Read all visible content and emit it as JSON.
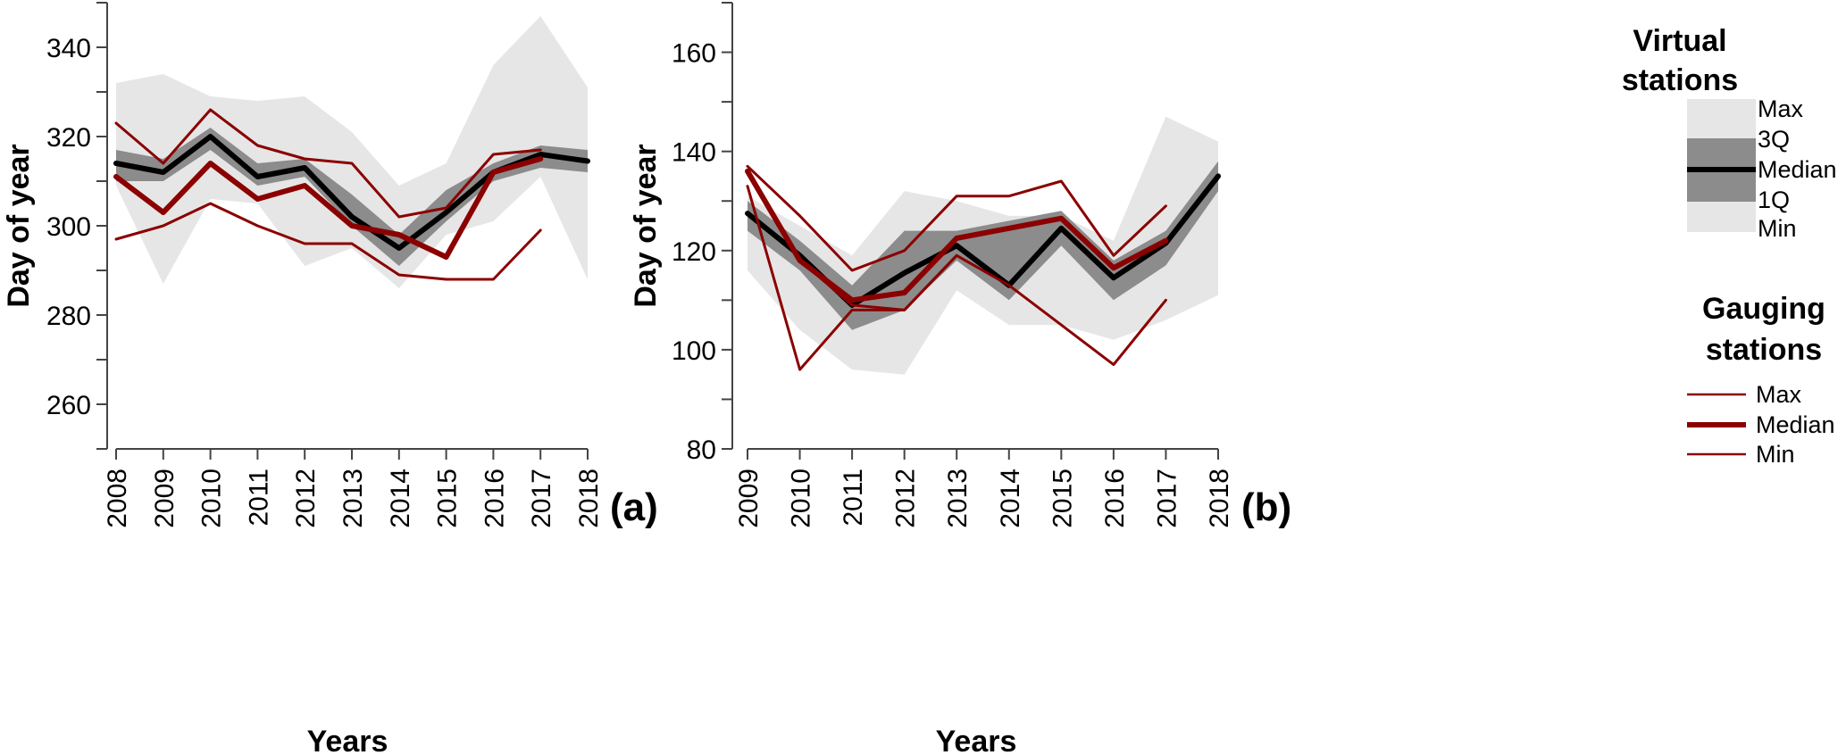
{
  "colors": {
    "minmax_band": "#e6e6e6",
    "quartile_band": "#8c8c8c",
    "virtual_median": "#000000",
    "gauging": "#8b0000",
    "axis": "#444444"
  },
  "chart_data": [
    {
      "type": "line",
      "panel_label": "(a)",
      "xlabel": "Years",
      "ylabel": "Day of year",
      "x": [
        2008,
        2009,
        2010,
        2011,
        2012,
        2013,
        2014,
        2015,
        2016,
        2017,
        2018
      ],
      "xticks": [
        "2008",
        "2009",
        "2010",
        "2011",
        "2012",
        "2013",
        "2014",
        "2015",
        "2016",
        "2017",
        "2018"
      ],
      "ylim": [
        250,
        350
      ],
      "yticks": [
        260,
        280,
        300,
        320,
        340
      ],
      "virtual_stations": {
        "max": [
          332,
          334,
          329,
          328,
          329,
          321,
          309,
          314,
          336,
          347,
          331
        ],
        "q3": [
          317,
          315,
          322,
          314,
          315,
          307,
          298,
          308,
          314,
          318,
          317
        ],
        "median": [
          314,
          312,
          320,
          311,
          313,
          302,
          295,
          303,
          312,
          316,
          314.5
        ],
        "q1": [
          310,
          310,
          317,
          309,
          311,
          300,
          291,
          301,
          310,
          313,
          312
        ],
        "min": [
          309,
          287,
          306,
          305,
          291,
          295,
          286,
          298,
          301,
          311,
          288
        ]
      },
      "gauging_stations": {
        "x": [
          2008,
          2009,
          2010,
          2011,
          2012,
          2013,
          2014,
          2015,
          2016,
          2017
        ],
        "max": [
          323,
          314,
          326,
          318,
          315,
          314,
          302,
          304,
          316,
          317
        ],
        "median": [
          311,
          303,
          314,
          306,
          309,
          300,
          298,
          293,
          312,
          315
        ],
        "min": [
          297,
          300,
          305,
          300,
          296,
          296,
          289,
          288,
          288,
          299
        ]
      }
    },
    {
      "type": "line",
      "panel_label": "(b)",
      "xlabel": "Years",
      "ylabel": "Day of year",
      "x": [
        2009,
        2010,
        2011,
        2012,
        2013,
        2014,
        2015,
        2016,
        2017,
        2018
      ],
      "xticks": [
        "2009",
        "2010",
        "2011",
        "2012",
        "2013",
        "2014",
        "2015",
        "2016",
        "2017",
        "2018"
      ],
      "ylim": [
        80,
        170
      ],
      "yticks": [
        80,
        100,
        120,
        140,
        160
      ],
      "virtual_stations": {
        "max": [
          131,
          125,
          119,
          132,
          130,
          127,
          127,
          122,
          147,
          142
        ],
        "q3": [
          130,
          122,
          113,
          124,
          124,
          126,
          128,
          118,
          124,
          138
        ],
        "median": [
          127.5,
          119,
          109,
          115.5,
          121,
          113,
          124.5,
          114.5,
          121.5,
          135
        ],
        "q1": [
          124,
          116,
          104,
          108,
          118,
          110,
          121,
          110,
          117,
          132
        ],
        "min": [
          116,
          104,
          96,
          95,
          112,
          105,
          105,
          102,
          106,
          111
        ]
      },
      "gauging_stations": {
        "x": [
          2009,
          2010,
          2011,
          2012,
          2013,
          2014,
          2015,
          2016,
          2017
        ],
        "max": [
          137,
          127,
          116,
          120,
          131,
          131,
          134,
          119,
          129
        ],
        "median": [
          136,
          118,
          110,
          111.5,
          122.5,
          124.5,
          126.5,
          116.5,
          122
        ],
        "min": [
          133,
          96,
          108,
          108,
          119,
          113,
          105,
          97,
          110
        ],
        "extra": [
          136,
          118,
          109,
          108,
          119
        ]
      }
    }
  ],
  "legend": {
    "virtual_title": "Virtual\nstations",
    "virtual_title_line1": "Virtual",
    "virtual_title_line2": "stations",
    "virtual_items": [
      "Max",
      "3Q",
      "Median",
      "1Q",
      "Min"
    ],
    "gauging_title_line1": "Gauging",
    "gauging_title_line2": "stations",
    "gauging_items": [
      "Max",
      "Median",
      "Min"
    ]
  }
}
